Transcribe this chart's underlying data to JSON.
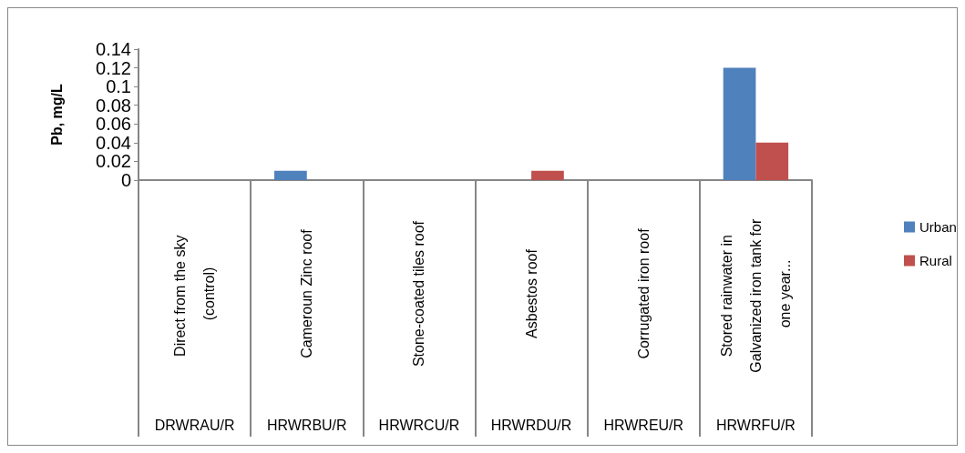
{
  "chart_data": {
    "type": "bar",
    "ylabel": "Pb, mg/L",
    "categories": [
      "Direct from the sky (control)",
      "Cameroun Zinc roof",
      "Stone-coated tiles roof",
      "Asbestos roof",
      "Corrugated iron roof",
      "Stored rainwater in Galvanized iron tank for one year..."
    ],
    "annotations": [
      "DRWRAU/R",
      "HRWRBU/R",
      "HRWRCU/R",
      "HRWRDU/R",
      "HRWREU/R",
      "HRWRFU/R"
    ],
    "series": [
      {
        "name": "Urban",
        "color": "#4f81bd",
        "values": [
          0,
          0.01,
          0,
          0,
          0,
          0.12
        ]
      },
      {
        "name": "Rural",
        "color": "#c0504d",
        "values": [
          0,
          0,
          0,
          0.01,
          0,
          0.04
        ]
      }
    ],
    "ylim": [
      0,
      0.14
    ],
    "yticks": [
      0,
      0.02,
      0.04,
      0.06,
      0.08,
      0.1,
      0.12,
      0.14
    ],
    "grid": false,
    "legend": "right"
  }
}
